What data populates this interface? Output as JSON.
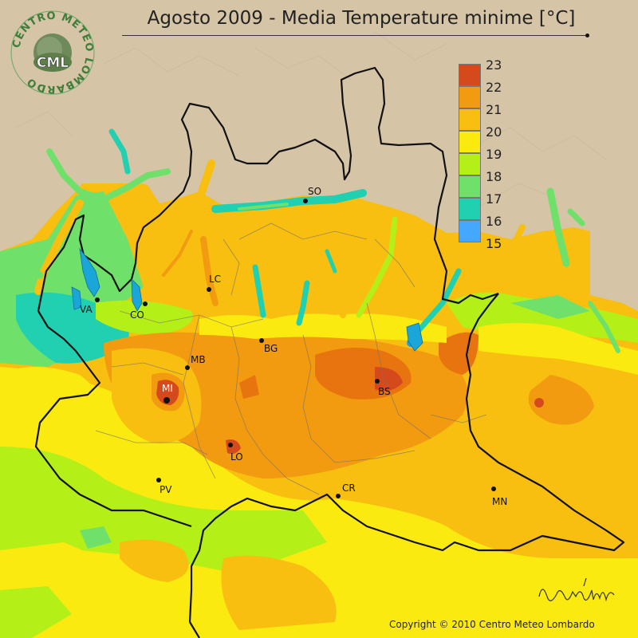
{
  "title": "Agosto 2009 - Media Temperature minime [°C]",
  "logo": {
    "name": "Centro Meteo Lombardo logo",
    "badge_text": "CML",
    "ring_text": "CENTRO METEO LOMBARDO"
  },
  "legend": {
    "items": [
      {
        "label": "23",
        "color": "#d44a1c"
      },
      {
        "label": "22",
        "color": "#f29a10"
      },
      {
        "label": "21",
        "color": "#f8be10"
      },
      {
        "label": "20",
        "color": "#fbea10"
      },
      {
        "label": "19",
        "color": "#b4ef18"
      },
      {
        "label": "18",
        "color": "#6fe06a"
      },
      {
        "label": "17",
        "color": "#20d0b0"
      },
      {
        "label": "16",
        "color": "#44a8ff"
      },
      {
        "label": "15",
        "color": ""
      }
    ]
  },
  "cities": [
    {
      "code": "SO"
    },
    {
      "code": "LC"
    },
    {
      "code": "VA"
    },
    {
      "code": "CO"
    },
    {
      "code": "BG"
    },
    {
      "code": "MB"
    },
    {
      "code": "MI"
    },
    {
      "code": "BS"
    },
    {
      "code": "LO"
    },
    {
      "code": "PV"
    },
    {
      "code": "CR"
    },
    {
      "code": "MN"
    }
  ],
  "signature": "Bruno Gilli",
  "copyright": "Copyright © 2010 Centro Meteo Lombardo",
  "colors": {
    "background": "#d4c3a5",
    "lake": "#1aa6d9",
    "border": "#111111"
  }
}
